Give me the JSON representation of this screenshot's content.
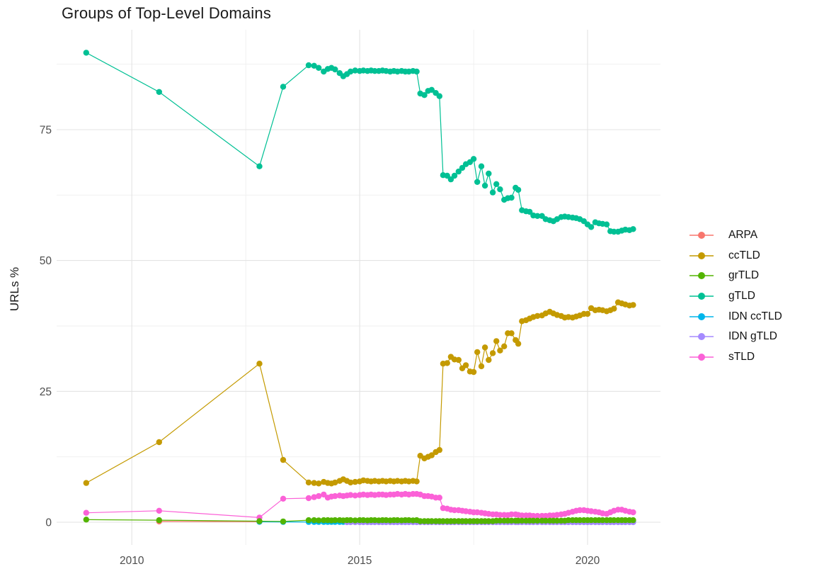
{
  "chart_data": {
    "type": "line",
    "title": "Groups of Top-Level Domains",
    "ylabel": "URLs %",
    "legend_position": "right",
    "grid": "major-and-minor",
    "x_axis": {
      "range": [
        2008.35,
        2021.6
      ],
      "major_ticks": [
        {
          "label": "2010",
          "value": 2010
        },
        {
          "label": "2015",
          "value": 2015
        },
        {
          "label": "2020",
          "value": 2020
        }
      ],
      "minor_ticks": [
        2012.5,
        2017.5
      ]
    },
    "y_axis": {
      "range": [
        -4.33,
        94.08
      ],
      "major_ticks": [
        {
          "label": "0",
          "value": 0
        },
        {
          "label": "25",
          "value": 25
        },
        {
          "label": "50",
          "value": 50
        },
        {
          "label": "75",
          "value": 75
        }
      ],
      "minor_ticks": [
        12.5,
        37.5,
        62.5,
        87.5
      ]
    },
    "draw_order": [
      0,
      4,
      5,
      3,
      1,
      6,
      2
    ],
    "dense_x": [
      2013.88,
      2014.0,
      2014.1,
      2014.21,
      2014.3,
      2014.38,
      2014.46,
      2014.56,
      2014.64,
      2014.72,
      2014.8,
      2014.9,
      2015.0,
      2015.08,
      2015.17,
      2015.25,
      2015.33,
      2015.42,
      2015.5,
      2015.58,
      2015.67,
      2015.75,
      2015.83,
      2015.92,
      2016.0,
      2016.08,
      2016.17,
      2016.25,
      2016.33,
      2016.42,
      2016.5,
      2016.58,
      2016.67,
      2016.75,
      2016.83,
      2016.92,
      2017.0,
      2017.08,
      2017.17,
      2017.25,
      2017.33,
      2017.42,
      2017.5,
      2017.58,
      2017.67,
      2017.75,
      2017.83,
      2017.92,
      2018.0,
      2018.08,
      2018.17,
      2018.25,
      2018.33,
      2018.42,
      2018.48,
      2018.56,
      2018.65,
      2018.73,
      2018.81,
      2018.9,
      2019.0,
      2019.08,
      2019.17,
      2019.25,
      2019.33,
      2019.42,
      2019.5,
      2019.58,
      2019.67,
      2019.75,
      2019.83,
      2019.92,
      2020.0,
      2020.08,
      2020.17,
      2020.25,
      2020.33,
      2020.42,
      2020.5,
      2020.58,
      2020.67,
      2020.75,
      2020.83,
      2020.92,
      2021.0
    ],
    "series": [
      {
        "name": "ARPA",
        "color": "#F8766D",
        "head": [
          [
            2010.6,
            0.15
          ],
          [
            2012.8,
            0.1
          ]
        ],
        "dense_y": null
      },
      {
        "name": "ccTLD",
        "color": "#C49A00",
        "head": [
          [
            2009.0,
            7.5
          ],
          [
            2010.6,
            15.3
          ],
          [
            2012.8,
            30.3
          ],
          [
            2013.32,
            11.9
          ]
        ],
        "dense_y": [
          7.6,
          7.5,
          7.4,
          7.7,
          7.5,
          7.4,
          7.6,
          7.9,
          8.2,
          7.9,
          7.6,
          7.7,
          7.8,
          8.0,
          7.9,
          7.8,
          7.9,
          7.8,
          7.9,
          7.8,
          7.9,
          7.8,
          7.9,
          7.8,
          7.9,
          7.8,
          7.9,
          7.8,
          12.7,
          12.2,
          12.5,
          12.8,
          13.4,
          13.8,
          30.3,
          30.4,
          31.6,
          31.1,
          31.0,
          29.4,
          30.0,
          28.8,
          28.7,
          32.5,
          29.8,
          33.4,
          31.0,
          32.3,
          34.6,
          32.8,
          33.6,
          36.1,
          36.1,
          34.8,
          34.1,
          38.4,
          38.6,
          38.9,
          39.2,
          39.4,
          39.5,
          39.9,
          40.2,
          39.9,
          39.6,
          39.4,
          39.1,
          39.2,
          39.1,
          39.3,
          39.5,
          39.8,
          39.8,
          40.9,
          40.5,
          40.6,
          40.5,
          40.3,
          40.5,
          40.8,
          42.0,
          41.8,
          41.6,
          41.4,
          41.5
        ]
      },
      {
        "name": "grTLD",
        "color": "#53B400",
        "head": [
          [
            2009.0,
            0.5
          ],
          [
            2010.6,
            0.4
          ],
          [
            2012.8,
            0.2
          ],
          [
            2013.32,
            0.15
          ]
        ],
        "dense_y": [
          0.4,
          0.4,
          0.35,
          0.4,
          0.4,
          0.35,
          0.4,
          0.4,
          0.35,
          0.4,
          0.4,
          0.35,
          0.4,
          0.4,
          0.35,
          0.4,
          0.4,
          0.35,
          0.4,
          0.4,
          0.35,
          0.4,
          0.4,
          0.35,
          0.4,
          0.4,
          0.35,
          0.4,
          0.2,
          0.2,
          0.2,
          0.2,
          0.2,
          0.2,
          0.2,
          0.2,
          0.2,
          0.2,
          0.2,
          0.2,
          0.2,
          0.2,
          0.2,
          0.2,
          0.2,
          0.2,
          0.2,
          0.2,
          0.3,
          0.3,
          0.3,
          0.3,
          0.3,
          0.3,
          0.3,
          0.3,
          0.3,
          0.3,
          0.3,
          0.3,
          0.3,
          0.3,
          0.3,
          0.3,
          0.3,
          0.3,
          0.3,
          0.4,
          0.4,
          0.4,
          0.4,
          0.4,
          0.4,
          0.4,
          0.4,
          0.4,
          0.4,
          0.4,
          0.4,
          0.4,
          0.4,
          0.4,
          0.4,
          0.4,
          0.4
        ]
      },
      {
        "name": "gTLD",
        "color": "#00C094",
        "head": [
          [
            2009.0,
            89.7
          ],
          [
            2010.6,
            82.2
          ],
          [
            2012.8,
            68.0
          ],
          [
            2013.32,
            83.2
          ]
        ],
        "dense_y": [
          87.3,
          87.2,
          86.8,
          86.1,
          86.6,
          86.8,
          86.5,
          85.8,
          85.2,
          85.6,
          86.1,
          86.3,
          86.2,
          86.3,
          86.2,
          86.3,
          86.2,
          86.2,
          86.3,
          86.2,
          86.1,
          86.2,
          86.1,
          86.2,
          86.1,
          86.1,
          86.2,
          86.1,
          81.9,
          81.6,
          82.4,
          82.6,
          82.0,
          81.4,
          66.3,
          66.2,
          65.5,
          66.2,
          67.0,
          67.7,
          68.4,
          68.8,
          69.4,
          65.0,
          68.0,
          64.3,
          66.6,
          63.0,
          64.6,
          63.6,
          61.6,
          61.9,
          62.0,
          63.9,
          63.5,
          59.6,
          59.4,
          59.3,
          58.6,
          58.5,
          58.5,
          57.9,
          57.7,
          57.5,
          57.9,
          58.3,
          58.4,
          58.3,
          58.2,
          58.1,
          57.9,
          57.5,
          56.9,
          56.4,
          57.3,
          57.1,
          57.0,
          56.9,
          55.6,
          55.5,
          55.5,
          55.7,
          55.9,
          55.8,
          56.0
        ]
      },
      {
        "name": "IDN ccTLD",
        "color": "#00B6EB",
        "head": [
          [
            2012.8,
            0.08
          ],
          [
            2013.32,
            0.05
          ]
        ],
        "dense_y": [
          0.05,
          0.05,
          0.05,
          0.05,
          0.05,
          0.05,
          0.05,
          0.05,
          0.05,
          0.05,
          0.05,
          0.05,
          0.05,
          0.05,
          0.05,
          0.05,
          0.05,
          0.05,
          0.05,
          0.05,
          0.05,
          0.05,
          0.05,
          0.05,
          0.05,
          0.05,
          0.05,
          0.05,
          0.05,
          0.05,
          0.05,
          0.05,
          0.05,
          0.05,
          0.05,
          0.05,
          0.05,
          0.05,
          0.05,
          0.05,
          0.05,
          0.05,
          0.05,
          0.05,
          0.05,
          0.05,
          0.05,
          0.05,
          0.05,
          0.05,
          0.05,
          0.05,
          0.05,
          0.05,
          0.05,
          0.05,
          0.05,
          0.05,
          0.05,
          0.05,
          0.05,
          0.05,
          0.05,
          0.05,
          0.05,
          0.05,
          0.05,
          0.05,
          0.05,
          0.05,
          0.05,
          0.05,
          0.05,
          0.05,
          0.05,
          0.05,
          0.05,
          0.05,
          0.05,
          0.05,
          0.05,
          0.05,
          0.05,
          0.05,
          0.05
        ]
      },
      {
        "name": "IDN gTLD",
        "color": "#A58AFF",
        "head": [],
        "dense_start": 9,
        "dense_y": [
          0.02,
          0.02,
          0.02,
          0.02,
          0.02,
          0.02,
          0.02,
          0.02,
          0.02,
          0.02,
          0.02,
          0.02,
          0.02,
          0.02,
          0.02,
          0.02,
          0.02,
          0.02,
          0.02,
          0.02,
          0.02,
          0.02,
          0.02,
          0.02,
          0.02,
          0.02,
          0.02,
          0.02,
          0.02,
          0.02,
          0.02,
          0.02,
          0.02,
          0.02,
          0.02,
          0.02,
          0.02,
          0.02,
          0.02,
          0.02,
          0.02,
          0.02,
          0.02,
          0.02,
          0.02,
          0.02,
          0.02,
          0.02,
          0.02,
          0.02,
          0.02,
          0.02,
          0.02,
          0.02,
          0.02,
          0.02,
          0.02,
          0.02,
          0.02,
          0.02,
          0.02,
          0.02,
          0.02,
          0.02,
          0.02,
          0.02,
          0.02,
          0.02,
          0.02,
          0.02,
          0.02,
          0.02,
          0.02,
          0.02,
          0.02,
          0.02
        ]
      },
      {
        "name": "sTLD",
        "color": "#FB61D7",
        "head": [
          [
            2009.0,
            1.8
          ],
          [
            2010.6,
            2.2
          ],
          [
            2012.8,
            0.9
          ],
          [
            2013.32,
            4.5
          ]
        ],
        "dense_y": [
          4.6,
          4.8,
          5.0,
          5.3,
          4.7,
          4.9,
          5.0,
          5.1,
          5.0,
          5.1,
          5.2,
          5.1,
          5.2,
          5.3,
          5.2,
          5.3,
          5.2,
          5.3,
          5.3,
          5.2,
          5.3,
          5.3,
          5.4,
          5.3,
          5.4,
          5.3,
          5.4,
          5.4,
          5.3,
          5.0,
          5.0,
          4.9,
          4.7,
          4.7,
          2.7,
          2.6,
          2.4,
          2.3,
          2.3,
          2.2,
          2.1,
          2.0,
          1.9,
          1.9,
          1.8,
          1.7,
          1.6,
          1.5,
          1.5,
          1.4,
          1.4,
          1.35,
          1.5,
          1.5,
          1.4,
          1.3,
          1.3,
          1.3,
          1.2,
          1.2,
          1.2,
          1.2,
          1.3,
          1.3,
          1.4,
          1.5,
          1.6,
          1.8,
          2.0,
          2.2,
          2.3,
          2.3,
          2.2,
          2.1,
          2.0,
          1.9,
          1.7,
          1.6,
          1.9,
          2.2,
          2.4,
          2.4,
          2.2,
          2.0,
          1.9
        ]
      }
    ]
  },
  "colors": {
    "background": "#ffffff",
    "grid_major": "#e3e3e3",
    "grid_minor": "#efefef",
    "tick_label": "#4d4d4d",
    "text": "#1a1a1a"
  }
}
